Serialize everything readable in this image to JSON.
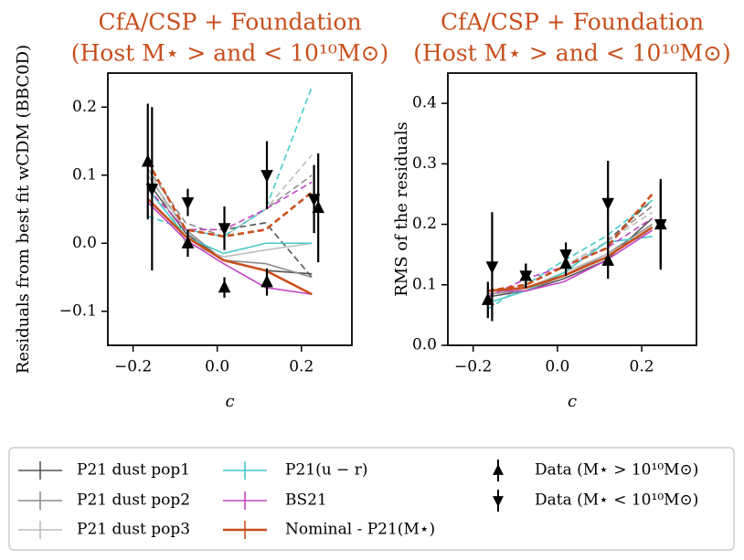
{
  "chart_data": [
    {
      "type": "line",
      "title": "CfA/CSP + Foundation",
      "subtitle": "(Host M⋆ > and < 10¹⁰M⊙)",
      "xlabel": "c",
      "ylabel": "Residuals from best fit wCDM (BBC0D)",
      "xlim": [
        -0.26,
        0.32
      ],
      "ylim": [
        -0.15,
        0.25
      ],
      "xticks": [
        {
          "value": -0.2,
          "label": "−0.2"
        },
        {
          "value": 0.0,
          "label": "0.0"
        },
        {
          "value": 0.2,
          "label": "0.2"
        }
      ],
      "yticks": [
        {
          "value": -0.1,
          "label": "−0.1"
        },
        {
          "value": 0.0,
          "label": "0.0"
        },
        {
          "value": 0.1,
          "label": "0.1"
        },
        {
          "value": 0.2,
          "label": "0.2"
        }
      ],
      "x": [
        -0.165,
        -0.075,
        0.015,
        0.115,
        0.225
      ],
      "series": [
        {
          "name": "P21 dust pop1",
          "color": "#555555",
          "values": [
            0.09,
            0.015,
            -0.025,
            -0.04,
            -0.045
          ],
          "dashed_values": [
            0.1,
            0.02,
            0.02,
            0.03,
            -0.05
          ]
        },
        {
          "name": "P21 dust pop2",
          "color": "#8c8c8c",
          "values": [
            0.1,
            0.02,
            -0.025,
            -0.03,
            -0.05
          ],
          "dashed_values": [
            0.11,
            0.03,
            0.01,
            0.05,
            0.1
          ]
        },
        {
          "name": "P21 dust pop3",
          "color": "#bdbdbd",
          "values": [
            0.11,
            0.0,
            -0.02,
            -0.01,
            0.0
          ],
          "dashed_values": [
            0.1,
            0.02,
            0.01,
            0.05,
            0.13
          ]
        },
        {
          "name": "P21(u − r)",
          "color": "#45c9c9",
          "values": [
            0.08,
            0.01,
            -0.015,
            0.0,
            0.0
          ],
          "dashed_values": [
            0.04,
            0.02,
            0.01,
            0.05,
            0.23
          ]
        },
        {
          "name": "BS21",
          "color": "#c445c4",
          "values": [
            0.06,
            0.005,
            -0.03,
            -0.065,
            -0.075
          ],
          "dashed_values": [
            0.08,
            0.02,
            0.02,
            0.05,
            0.09
          ]
        },
        {
          "name": "Nominal - P21(M⋆)",
          "color": "#c8501e",
          "values": [
            0.065,
            0.01,
            -0.025,
            -0.04,
            -0.075
          ],
          "dashed_values": [
            0.12,
            0.02,
            0.01,
            0.02,
            0.075
          ]
        }
      ],
      "data_series": [
        {
          "name": "Data (M⋆ > 10¹⁰M⊙)",
          "marker": "up",
          "color": "#000000",
          "x": [
            -0.165,
            -0.07,
            0.017,
            0.118,
            0.24
          ],
          "values": [
            0.12,
            0.0,
            -0.065,
            -0.057,
            0.052
          ],
          "errors": [
            0.085,
            0.02,
            0.015,
            0.02,
            0.08
          ]
        },
        {
          "name": "Data (M⋆ < 10¹⁰M⊙)",
          "marker": "down",
          "color": "#000000",
          "x": [
            -0.155,
            -0.07,
            0.017,
            0.118,
            0.23
          ],
          "values": [
            0.08,
            0.06,
            0.022,
            0.1,
            0.065
          ],
          "errors": [
            0.12,
            0.02,
            0.032,
            0.05,
            0.05
          ]
        }
      ]
    },
    {
      "type": "line",
      "title": "CfA/CSP + Foundation",
      "subtitle": "(Host M⋆ > and < 10¹⁰M⊙)",
      "xlabel": "c",
      "ylabel": "RMS of the residuals",
      "xlim": [
        -0.26,
        0.33
      ],
      "ylim": [
        0.0,
        0.45
      ],
      "xticks": [
        {
          "value": -0.2,
          "label": "−0.2"
        },
        {
          "value": 0.0,
          "label": "0.0"
        },
        {
          "value": 0.2,
          "label": "0.2"
        }
      ],
      "yticks": [
        {
          "value": 0.0,
          "label": "0.0"
        },
        0.1,
        0.2,
        0.3,
        0.4
      ],
      "x": [
        -0.165,
        -0.075,
        0.015,
        0.115,
        0.225
      ],
      "series": [
        {
          "color": "#555555",
          "values": [
            0.08,
            0.09,
            0.11,
            0.14,
            0.21
          ],
          "dashed_values": [
            0.09,
            0.1,
            0.13,
            0.17,
            0.24
          ]
        },
        {
          "color": "#8c8c8c",
          "values": [
            0.085,
            0.09,
            0.115,
            0.15,
            0.2
          ],
          "dashed_values": [
            0.09,
            0.1,
            0.13,
            0.17,
            0.23
          ]
        },
        {
          "color": "#bdbdbd",
          "values": [
            0.09,
            0.095,
            0.12,
            0.15,
            0.19
          ],
          "dashed_values": [
            0.09,
            0.1,
            0.13,
            0.17,
            0.22
          ]
        },
        {
          "color": "#45c9c9",
          "values": [
            0.07,
            0.09,
            0.12,
            0.17,
            0.18
          ],
          "dashed_values": [
            0.06,
            0.1,
            0.14,
            0.18,
            0.24
          ]
        },
        {
          "color": "#c445c4",
          "values": [
            0.09,
            0.09,
            0.105,
            0.14,
            0.19
          ],
          "dashed_values": [
            0.08,
            0.11,
            0.13,
            0.16,
            0.21
          ]
        },
        {
          "color": "#c8501e",
          "values": [
            0.09,
            0.095,
            0.115,
            0.145,
            0.195
          ],
          "dashed_values": [
            0.09,
            0.1,
            0.13,
            0.16,
            0.25
          ]
        }
      ],
      "data_series": [
        {
          "marker": "up",
          "color": "#000000",
          "x": [
            -0.165,
            -0.075,
            0.02,
            0.12,
            0.245
          ],
          "values": [
            0.075,
            0.115,
            0.135,
            0.14,
            0.2
          ],
          "errors": [
            0.03,
            0.02,
            0.02,
            0.03,
            0.07
          ]
        },
        {
          "marker": "down",
          "color": "#000000",
          "x": [
            -0.155,
            -0.075,
            0.02,
            0.12,
            0.245
          ],
          "values": [
            0.13,
            0.115,
            0.15,
            0.235,
            0.2
          ],
          "errors": [
            0.09,
            0.02,
            0.02,
            0.07,
            0.075
          ]
        }
      ]
    }
  ]
}
